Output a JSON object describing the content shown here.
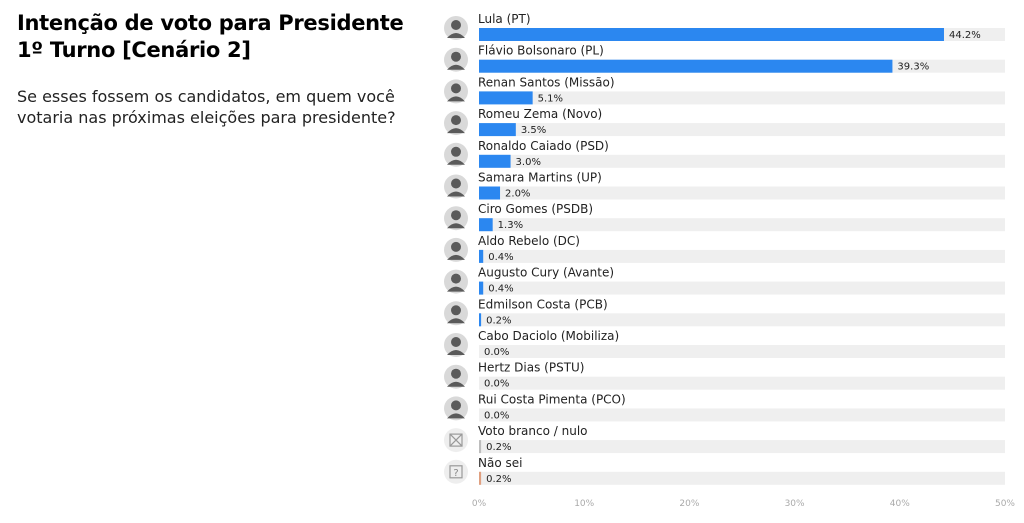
{
  "header": {
    "title_line1": "Intenção de voto para Presidente",
    "title_line2": "1º Turno [Cenário 2]",
    "question": "Se esses fossem os candidatos, em quem você votaria nas próximas eleições para presidente?"
  },
  "colors": {
    "bar": "#2b87f0",
    "bar_blank": "#bdbdbd",
    "bar_unsure": "#e0a080",
    "track": "#efefef",
    "text": "#222222",
    "tick": "#aaaaaa"
  },
  "chart_data": {
    "type": "bar",
    "orientation": "horizontal",
    "title": "Intenção de voto para Presidente 1º Turno [Cenário 2]",
    "xlim": [
      0,
      50
    ],
    "ticks": [
      "0%",
      "10%",
      "20%",
      "30%",
      "40%",
      "50%"
    ],
    "tick_values": [
      0,
      10,
      20,
      30,
      40,
      50
    ],
    "categories": [
      "Lula (PT)",
      "Flávio Bolsonaro (PL)",
      "Renan Santos (Missão)",
      "Romeu Zema (Novo)",
      "Ronaldo Caiado (PSD)",
      "Samara Martins (UP)",
      "Ciro Gomes (PSDB)",
      "Aldo Rebelo (DC)",
      "Augusto Cury (Avante)",
      "Edmilson Costa (PCB)",
      "Cabo Daciolo (Mobiliza)",
      "Hertz Dias (PSTU)",
      "Rui Costa Pimenta (PCO)",
      "Voto branco / nulo",
      "Não sei"
    ],
    "values": [
      44.2,
      39.3,
      5.1,
      3.5,
      3.0,
      2.0,
      1.3,
      0.4,
      0.4,
      0.2,
      0.0,
      0.0,
      0.0,
      0.2,
      0.2
    ],
    "value_labels": [
      "44.2%",
      "39.3%",
      "5.1%",
      "3.5%",
      "3.0%",
      "2.0%",
      "1.3%",
      "0.4%",
      "0.4%",
      "0.2%",
      "0.0%",
      "0.0%",
      "0.0%",
      "0.2%",
      "0.2%"
    ],
    "icons": [
      "avatar-photo",
      "avatar-photo",
      "avatar-photo",
      "avatar-photo",
      "avatar-photo",
      "avatar-photo",
      "avatar-photo",
      "avatar-photo",
      "avatar-photo",
      "avatar-photo",
      "avatar-photo",
      "avatar-photo",
      "avatar-photo",
      "blank-ballot-icon",
      "question-mark-icon"
    ],
    "grid": false
  }
}
